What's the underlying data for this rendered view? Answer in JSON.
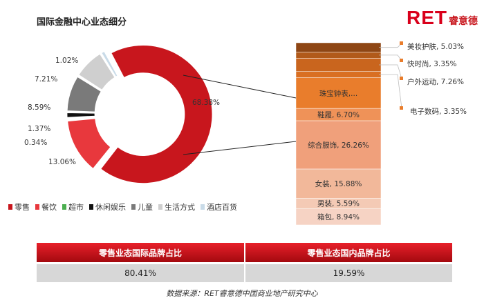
{
  "title": "国际金融中心业态细分",
  "logo": {
    "text": "RET",
    "cn": "睿意德"
  },
  "chart_data": [
    {
      "type": "pie",
      "subtype": "donut",
      "legend_position": "bottom",
      "slices": [
        {
          "name": "零售",
          "value": 68.38,
          "label": "68.38%",
          "color": "#c8161d"
        },
        {
          "name": "餐饮",
          "value": 13.06,
          "label": "13.06%",
          "color": "#e8383d"
        },
        {
          "name": "超市",
          "value": 0.34,
          "label": "0.34%",
          "color": "#4caf50"
        },
        {
          "name": "休闲娱乐",
          "value": 1.37,
          "label": "1.37%",
          "color": "#111111"
        },
        {
          "name": "儿童",
          "value": 8.59,
          "label": "8.59%",
          "color": "#7a7a7a"
        },
        {
          "name": "生活方式",
          "value": 7.21,
          "label": "7.21%",
          "color": "#cfcfcf"
        },
        {
          "name": "酒店百货",
          "value": 1.02,
          "label": "1.02%",
          "color": "#c9dbe8"
        }
      ]
    },
    {
      "type": "bar",
      "subtype": "stacked-100",
      "description_of": "零售",
      "segments": [
        {
          "name": "箱包",
          "value": 8.94,
          "label": "箱包, 8.94%",
          "color": "#f6d3c4"
        },
        {
          "name": "男装",
          "value": 5.59,
          "label": "男装, 5.59%",
          "color": "#f4cab5"
        },
        {
          "name": "女装",
          "value": 15.88,
          "label": "女装, 15.88%",
          "color": "#f2b89a"
        },
        {
          "name": "综合服饰",
          "value": 26.26,
          "label": "综合服饰, 26.26%",
          "color": "#f0a07b"
        },
        {
          "name": "鞋履",
          "value": 6.7,
          "label": "鞋履, 6.70%",
          "color": "#ef9258"
        },
        {
          "name": "珠宝钟表",
          "value": 16.69,
          "label": "珠宝钟表,...",
          "color": "#e97d2c"
        },
        {
          "name": "电子数码",
          "value": 3.35,
          "label": "电子数码, 3.35%",
          "color": "#d96f22"
        },
        {
          "name": "户外运动",
          "value": 7.26,
          "label": "户外运动, 7.26%",
          "color": "#c9651e"
        },
        {
          "name": "快时尚",
          "value": 3.35,
          "label": "快时尚, 3.35%",
          "color": "#b15a1a"
        },
        {
          "name": "美妆护肤",
          "value": 5.03,
          "label": "美妆护肤, 5.03%",
          "color": "#8e4614"
        }
      ]
    }
  ],
  "table": {
    "headers": [
      "零售业态国际品牌占比",
      "零售业态国内品牌占比"
    ],
    "values": [
      "80.41%",
      "19.59%"
    ]
  },
  "source": "数据来源：RET睿意德中国商业地产研究中心"
}
